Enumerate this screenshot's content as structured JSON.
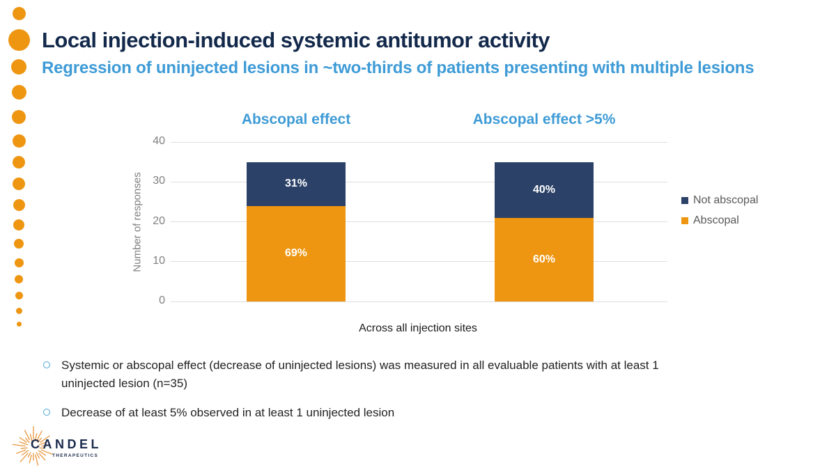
{
  "slide": {
    "title": "Local injection-induced systemic antitumor activity",
    "subtitle": "Regression of uninjected lesions in ~two-thirds of patients presenting with multiple lesions"
  },
  "chart_data": {
    "type": "bar",
    "stacked": true,
    "titles": [
      "Abscopal effect",
      "Abscopal effect >5%"
    ],
    "categories": [
      "Abscopal effect",
      "Abscopal effect >5%"
    ],
    "series": [
      {
        "name": "Abscopal",
        "color": "#EE9611",
        "values": [
          24,
          21
        ],
        "percent_labels": [
          "69%",
          "60%"
        ]
      },
      {
        "name": "Not abscopal",
        "color": "#2B4167",
        "values": [
          11,
          14
        ],
        "percent_labels": [
          "31%",
          "40%"
        ]
      }
    ],
    "bar_total": 35,
    "ylabel": "Number of responses",
    "x_axis_note": "Across all injection sites",
    "ylim": [
      0,
      40
    ],
    "yticks": [
      0,
      10,
      20,
      30,
      40
    ],
    "grid": true,
    "legend": {
      "position": "right",
      "entries": [
        {
          "label": "Not abscopal",
          "color": "#2B4167"
        },
        {
          "label": "Abscopal",
          "color": "#EE9611"
        }
      ]
    }
  },
  "bullets": [
    "Systemic or abscopal effect (decrease of uninjected lesions) was measured in all evaluable patients with at least 1 uninjected lesion (n=35)",
    "Decrease of at least 5% observed in at least 1 uninjected lesion"
  ],
  "logo": {
    "brand": "CANDEL",
    "sub_brand": "THERAPEUTICS"
  },
  "colors": {
    "accent_orange": "#EE9611",
    "navy": "#2B4167",
    "title_navy": "#13294B",
    "blue": "#3E9BD6",
    "axis_gray": "#7F7F7F",
    "legend_gray": "#595959",
    "gridline": "#DEDEDE"
  }
}
